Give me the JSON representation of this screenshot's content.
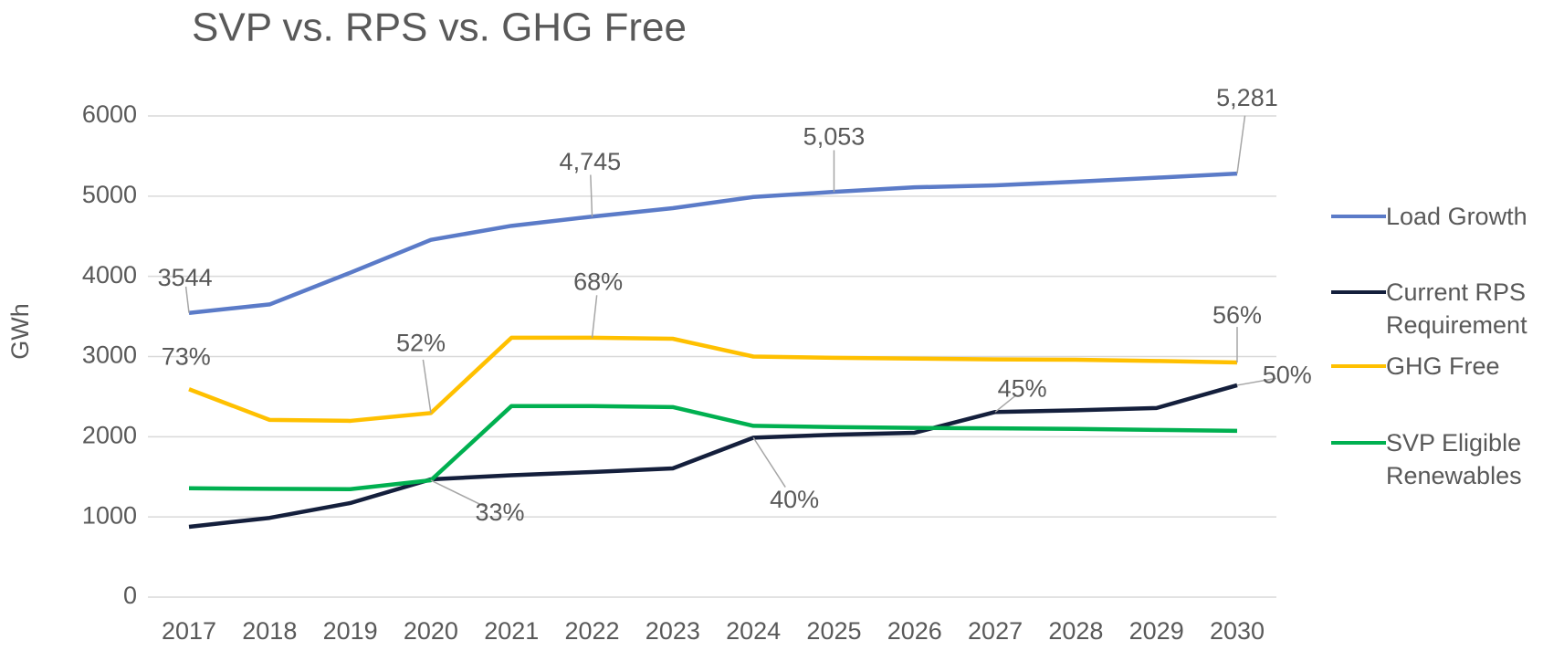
{
  "chart_data": {
    "type": "line",
    "title": "SVP vs. RPS vs. GHG Free",
    "y_label": "GWh",
    "categories": [
      "2017",
      "2018",
      "2019",
      "2020",
      "2021",
      "2022",
      "2023",
      "2024",
      "2025",
      "2026",
      "2027",
      "2028",
      "2029",
      "2030"
    ],
    "series": [
      {
        "name": "Load Growth",
        "color": "#5b7bc8",
        "values": [
          3544,
          3650,
          4045,
          4455,
          4630,
          4745,
          4850,
          4990,
          5053,
          5110,
          5135,
          5180,
          5230,
          5281
        ],
        "value_labels": [
          "3544",
          null,
          null,
          null,
          null,
          "4,745",
          null,
          null,
          "5,053",
          null,
          null,
          null,
          null,
          "5,281"
        ]
      },
      {
        "name": "Current RPS Requirement",
        "color": "#141f3c",
        "values": [
          877,
          988,
          1173,
          1469,
          1520,
          1560,
          1605,
          1988,
          2025,
          2050,
          2309,
          2330,
          2358,
          2642
        ]
      },
      {
        "name": "GHG Free",
        "color": "#ffc000",
        "values": [
          2593,
          2210,
          2198,
          2296,
          3235,
          3235,
          3222,
          3000,
          2985,
          2975,
          2965,
          2960,
          2945,
          2926
        ]
      },
      {
        "name": "SVP Eligible Renewables",
        "color": "#00b050",
        "values": [
          1358,
          1350,
          1346,
          1457,
          2383,
          2383,
          2370,
          2136,
          2120,
          2110,
          2105,
          2098,
          2085,
          2074
        ]
      }
    ],
    "annotations": [
      {
        "text": "73%",
        "series": 2,
        "index": 0
      },
      {
        "text": "52%",
        "series": 2,
        "index": 3
      },
      {
        "text": "68%",
        "series": 2,
        "index": 5
      },
      {
        "text": "56%",
        "series": 2,
        "index": 13
      },
      {
        "text": "33%",
        "series": 3,
        "index": 3
      },
      {
        "text": "40%",
        "series": 1,
        "index": 7
      },
      {
        "text": "45%",
        "series": 1,
        "index": 10
      },
      {
        "text": "50%",
        "series": 1,
        "index": 13
      }
    ],
    "ylim": [
      0,
      6000
    ],
    "yticks": [
      0,
      1000,
      2000,
      3000,
      4000,
      5000,
      6000
    ],
    "grid": true,
    "legend": "right"
  }
}
